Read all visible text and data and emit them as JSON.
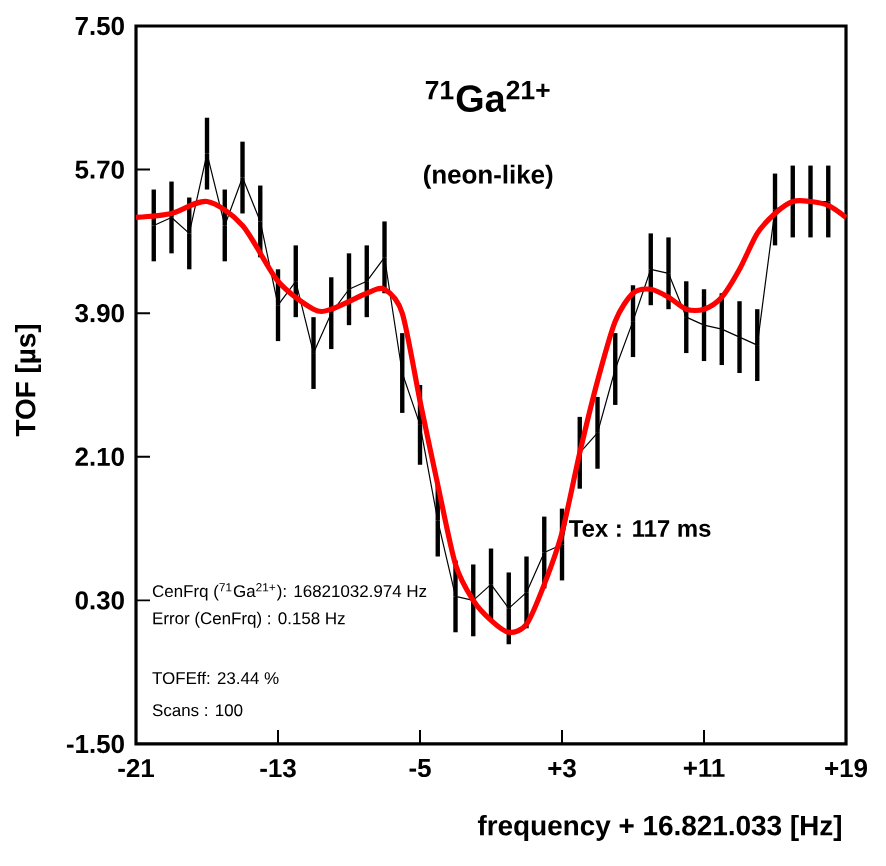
{
  "chart_data": {
    "type": "line",
    "title": "$^{71}$Ga$^{21+}$",
    "subtitle": "(neon-like)",
    "xlabel": "frequency + 16.821.033 [Hz]",
    "ylabel": "TOF [µs]",
    "annotations": [
      "Tex : 117 ms",
      "CenFrq ($^{71}$Ga$^{21+}$): 16821032.974 Hz",
      "Error (CenFrq) : 0.158 Hz",
      "TOFEff: 23.44 %",
      "Scans : 100"
    ],
    "xlim": [
      -21,
      19
    ],
    "ylim": [
      -1.5,
      7.5
    ],
    "xticks": [
      -21,
      -13,
      -5,
      {
        "value": 3,
        "label": "+3"
      },
      {
        "value": 11,
        "label": "+11"
      },
      {
        "value": 19,
        "label": "+19"
      }
    ],
    "yticks": [
      {
        "value": -1.5,
        "label": "-1.50"
      },
      {
        "value": 0.3,
        "label": "0.30"
      },
      {
        "value": 2.1,
        "label": "2.10"
      },
      {
        "value": 3.9,
        "label": "3.90"
      },
      {
        "value": 5.7,
        "label": "5.70"
      },
      {
        "value": 7.5,
        "label": "7.50"
      }
    ],
    "grid": false,
    "series": [
      {
        "color": "#000000",
        "x": [
          -20,
          -19,
          -18,
          -17,
          -16,
          -15,
          -14,
          -13,
          -12,
          -11,
          -10,
          -9,
          -8,
          -7,
          -6,
          -5,
          -4,
          -3,
          -2,
          -1,
          0,
          1,
          2,
          3,
          4,
          5,
          6,
          7,
          8,
          9,
          10,
          11,
          12,
          13,
          14,
          15,
          16,
          17,
          18
        ],
        "values": [
          5.0,
          5.1,
          4.9,
          5.9,
          5.0,
          5.6,
          5.05,
          4.0,
          4.3,
          3.4,
          3.9,
          4.2,
          4.3,
          4.6,
          3.15,
          2.5,
          1.3,
          0.35,
          0.3,
          0.5,
          0.2,
          0.4,
          0.9,
          1.0,
          2.15,
          2.4,
          3.2,
          3.8,
          4.45,
          4.4,
          3.85,
          3.75,
          3.7,
          3.6,
          3.5,
          5.2,
          5.3,
          5.3,
          5.3
        ],
        "errors": [
          0.45,
          0.45,
          0.45,
          0.45,
          0.45,
          0.45,
          0.45,
          0.45,
          0.45,
          0.45,
          0.45,
          0.45,
          0.45,
          0.45,
          0.5,
          0.5,
          0.45,
          0.45,
          0.45,
          0.45,
          0.45,
          0.45,
          0.45,
          0.45,
          0.45,
          0.45,
          0.45,
          0.45,
          0.45,
          0.45,
          0.45,
          0.45,
          0.45,
          0.45,
          0.45,
          0.45,
          0.45,
          0.45,
          0.45
        ]
      },
      {
        "color": "#ff0000",
        "x": [
          -21,
          -19,
          -17,
          -15,
          -13,
          -11,
          -10,
          -8,
          -7,
          -6,
          -5,
          -4,
          -3,
          -2,
          -1,
          0,
          1,
          2,
          3,
          4,
          5,
          6,
          7,
          8,
          9,
          10,
          11,
          12,
          13,
          14,
          15,
          16,
          17,
          18,
          19
        ],
        "values": [
          5.1,
          5.15,
          5.3,
          5.0,
          4.3,
          3.95,
          3.95,
          4.15,
          4.2,
          3.9,
          2.8,
          1.75,
          0.75,
          0.3,
          0.05,
          -0.1,
          0.0,
          0.5,
          1.15,
          2.15,
          3.05,
          3.8,
          4.15,
          4.2,
          4.1,
          3.95,
          3.95,
          4.1,
          4.45,
          4.9,
          5.15,
          5.3,
          5.3,
          5.25,
          5.1
        ]
      }
    ]
  }
}
